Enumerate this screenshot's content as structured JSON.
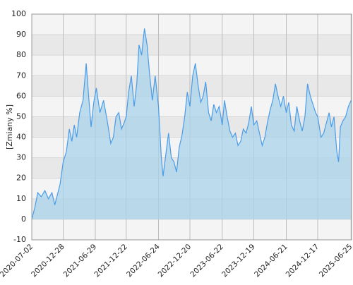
{
  "chart_data": {
    "type": "area",
    "y_label": "[Zmiany %]",
    "x": [
      "2020-07-02",
      "2020-07-20",
      "2020-08-05",
      "2020-08-25",
      "2020-09-15",
      "2020-10-05",
      "2020-10-25",
      "2020-11-10",
      "2020-11-25",
      "2020-12-10",
      "2020-12-28",
      "2021-01-15",
      "2021-02-01",
      "2021-02-15",
      "2021-03-01",
      "2021-03-15",
      "2021-04-01",
      "2021-04-20",
      "2021-05-08",
      "2021-05-20",
      "2021-06-05",
      "2021-06-20",
      "2021-07-05",
      "2021-07-25",
      "2021-08-15",
      "2021-09-05",
      "2021-09-25",
      "2021-10-10",
      "2021-10-25",
      "2021-11-10",
      "2021-11-25",
      "2021-12-10",
      "2021-12-22",
      "2022-01-05",
      "2022-01-20",
      "2022-02-05",
      "2022-02-20",
      "2022-03-05",
      "2022-03-20",
      "2022-04-05",
      "2022-04-20",
      "2022-05-05",
      "2022-05-20",
      "2022-06-05",
      "2022-06-24",
      "2022-07-10",
      "2022-07-20",
      "2022-08-05",
      "2022-08-20",
      "2022-09-05",
      "2022-09-20",
      "2022-10-05",
      "2022-10-20",
      "2022-11-05",
      "2022-11-20",
      "2022-12-05",
      "2022-12-20",
      "2023-01-05",
      "2023-01-20",
      "2023-02-05",
      "2023-02-20",
      "2023-03-05",
      "2023-03-20",
      "2023-04-05",
      "2023-04-20",
      "2023-05-05",
      "2023-05-20",
      "2023-06-05",
      "2023-06-22",
      "2023-07-05",
      "2023-07-20",
      "2023-08-05",
      "2023-08-20",
      "2023-09-05",
      "2023-09-20",
      "2023-10-05",
      "2023-10-20",
      "2023-11-05",
      "2023-11-20",
      "2023-12-05",
      "2023-12-19",
      "2024-01-05",
      "2024-01-20",
      "2024-02-05",
      "2024-02-20",
      "2024-03-05",
      "2024-03-20",
      "2024-04-05",
      "2024-04-20",
      "2024-05-05",
      "2024-05-20",
      "2024-06-05",
      "2024-06-21",
      "2024-07-05",
      "2024-07-20",
      "2024-08-05",
      "2024-08-20",
      "2024-09-05",
      "2024-09-20",
      "2024-10-05",
      "2024-10-20",
      "2024-11-05",
      "2024-11-20",
      "2024-12-05",
      "2024-12-17",
      "2025-01-05",
      "2025-01-20",
      "2025-02-05",
      "2025-02-20",
      "2025-03-05",
      "2025-03-20",
      "2025-04-05",
      "2025-04-15",
      "2025-04-25",
      "2025-05-10",
      "2025-05-25",
      "2025-06-10",
      "2025-06-25"
    ],
    "series": [
      {
        "color": "#4a9ce8",
        "fill": "#a9d3ea",
        "values": [
          0,
          6,
          13,
          11,
          14,
          10,
          13,
          7,
          12,
          17,
          28,
          33,
          44,
          38,
          46,
          40,
          52,
          58,
          76,
          62,
          45,
          57,
          64,
          52,
          58,
          48,
          37,
          40,
          50,
          52,
          44,
          47,
          50,
          62,
          70,
          55,
          66,
          85,
          80,
          93,
          85,
          70,
          58,
          70,
          55,
          30,
          21,
          32,
          42,
          30,
          28,
          23,
          35,
          41,
          50,
          62,
          55,
          70,
          76,
          65,
          57,
          60,
          67,
          52,
          48,
          56,
          52,
          55,
          46,
          58,
          50,
          43,
          40,
          42,
          36,
          38,
          44,
          42,
          47,
          55,
          46,
          48,
          42,
          36,
          40,
          47,
          53,
          58,
          66,
          60,
          55,
          60,
          52,
          57,
          46,
          43,
          55,
          48,
          43,
          50,
          66,
          60,
          56,
          52,
          50,
          40,
          42,
          47,
          52,
          45,
          50,
          33,
          28,
          45,
          48,
          50,
          55,
          58
        ]
      }
    ],
    "xlim": [
      "2020-07-02",
      "2025-06-28"
    ],
    "xticks": [
      "2020-07-02",
      "2020-12-28",
      "2021-06-29",
      "2021-12-22",
      "2022-06-24",
      "2022-12-20",
      "2023-06-22",
      "2023-12-19",
      "2024-06-21",
      "2024-12-17",
      "2025-06-25"
    ],
    "ylim": [
      -10,
      100
    ],
    "yticks": [
      -10,
      0,
      10,
      20,
      30,
      40,
      50,
      60,
      70,
      80,
      90,
      100
    ],
    "grid": true
  }
}
